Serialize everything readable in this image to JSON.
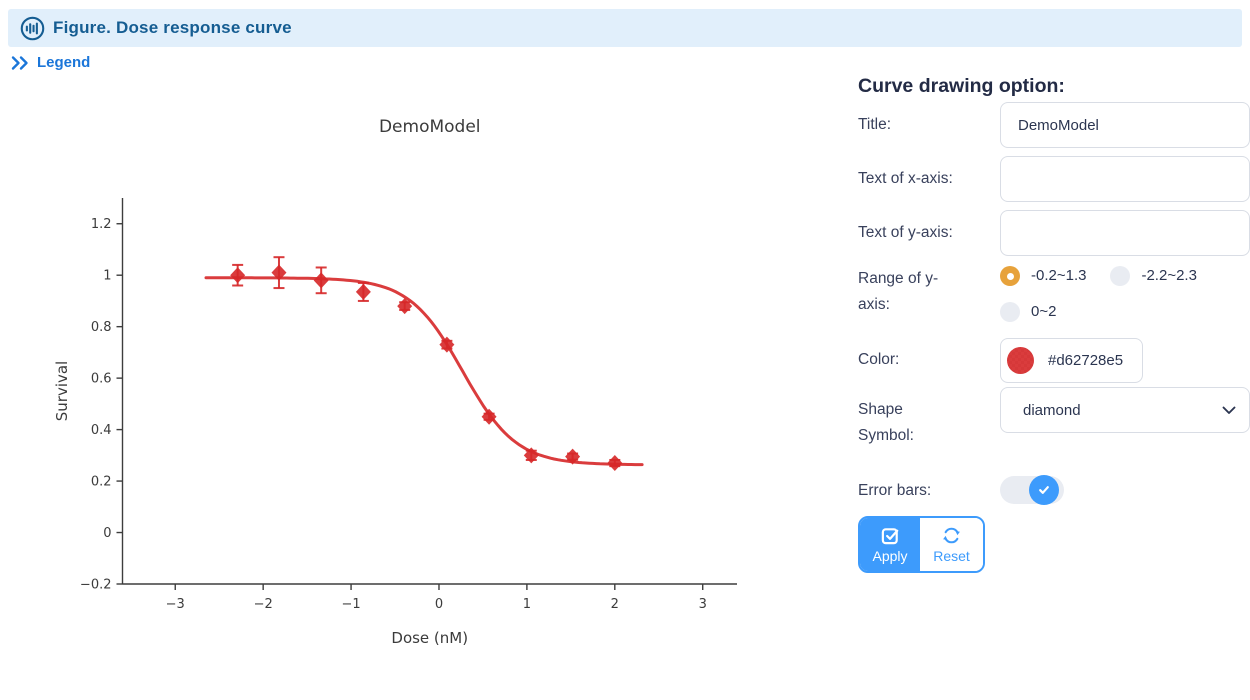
{
  "header": {
    "title": "Figure. Dose response curve",
    "icon": "bar-chart-circle",
    "background": "#e1effb",
    "text_color": "#155d92"
  },
  "legend_toggle": {
    "label": "Legend",
    "icon": "double-chevron-right",
    "color": "#1b76d9"
  },
  "options_panel": {
    "heading": "Curve drawing option:",
    "title_field": {
      "label": "Title:",
      "value": "DemoModel"
    },
    "xaxis_field": {
      "label": "Text of x-axis:",
      "value": ""
    },
    "yaxis_field": {
      "label": "Text of y-axis:",
      "value": ""
    },
    "y_range": {
      "label": "Range of y-axis:",
      "options": [
        {
          "label": "-0.2~1.3",
          "selected": true
        },
        {
          "label": "-2.2~2.3",
          "selected": false
        },
        {
          "label": "0~2",
          "selected": false
        }
      ],
      "selected_color": "#e7a23b"
    },
    "color_field": {
      "label": "Color:",
      "value": "#d62728e5",
      "swatch_color": "#d62728",
      "swatch_alpha": 0.9
    },
    "shape_field": {
      "label": "Shape Symbol:",
      "value": "diamond",
      "icon": "chevron-down"
    },
    "error_bars": {
      "label": "Error bars:",
      "enabled": true,
      "icon": "check"
    },
    "apply_button": {
      "label": "Apply",
      "icon": "checkbox-check"
    },
    "reset_button": {
      "label": "Reset",
      "icon": "refresh-arrows"
    },
    "accent_blue": "#3d9bfc"
  },
  "chart_data": {
    "type": "scatter",
    "title": "DemoModel",
    "xlabel": "Dose (nM)",
    "ylabel": "Survival",
    "xlim": [
      -3.6,
      3.39
    ],
    "ylim": [
      -0.2,
      1.3
    ],
    "x_ticks": [
      -3,
      -2,
      -1,
      0,
      1,
      2,
      3
    ],
    "y_ticks": [
      -0.2,
      0,
      0.2,
      0.4,
      0.6,
      0.8,
      1,
      1.2
    ],
    "grid": false,
    "legend": "none",
    "marker": "diamond",
    "color": "#d62728",
    "alpha": 0.9,
    "error_bars": true,
    "points": [
      {
        "x": -2.29,
        "y": 1.0,
        "err": 0.04
      },
      {
        "x": -1.82,
        "y": 1.01,
        "err": 0.06
      },
      {
        "x": -1.34,
        "y": 0.98,
        "err": 0.05
      },
      {
        "x": -0.86,
        "y": 0.935,
        "err": 0.035
      },
      {
        "x": -0.39,
        "y": 0.88,
        "err": 0.015
      },
      {
        "x": 0.09,
        "y": 0.73,
        "err": 0.015
      },
      {
        "x": 0.57,
        "y": 0.45,
        "err": 0.012
      },
      {
        "x": 1.05,
        "y": 0.3,
        "err": 0.018
      },
      {
        "x": 1.52,
        "y": 0.295,
        "err": 0.012
      },
      {
        "x": 2.0,
        "y": 0.27,
        "err": 0.012
      }
    ],
    "fit_curve": {
      "model": "logistic4",
      "top": 0.99,
      "bottom": 0.263,
      "log_ec50": 0.27,
      "hill_slope": 1.43,
      "x_range": [
        -2.65,
        2.33
      ]
    }
  }
}
